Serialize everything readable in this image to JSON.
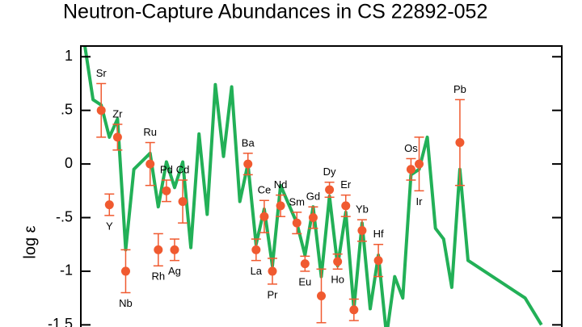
{
  "chart_data": {
    "type": "scatter",
    "title": "Neutron-Capture Abundances in CS 22892-052",
    "y_label": "log ε",
    "xlim": [
      35.5,
      94.5
    ],
    "ylim": [
      -1.52,
      1.1
    ],
    "yticks": [
      1,
      {
        "value": 0.5,
        "label": ".5"
      },
      0,
      {
        "value": -0.5,
        "label": "-.5"
      },
      -1,
      -1.5
    ],
    "points": {
      "color": "#f05a30",
      "x": [
        38,
        39,
        40,
        41,
        44,
        45,
        46,
        47,
        48,
        56,
        57,
        58,
        59,
        60,
        62,
        63,
        64,
        65,
        66,
        67,
        68,
        69,
        70,
        72,
        76,
        77,
        82
      ],
      "values": [
        0.5,
        -0.38,
        0.25,
        -1.0,
        0.0,
        -0.8,
        -0.25,
        -0.8,
        -0.35,
        0.0,
        -0.8,
        -0.49,
        -1.0,
        -0.39,
        -0.55,
        -0.93,
        -0.5,
        -1.23,
        -0.24,
        -0.91,
        -0.39,
        -1.36,
        -0.62,
        -0.9,
        -0.05,
        0.0,
        0.2
      ],
      "errors": [
        0.25,
        0.1,
        0.12,
        0.2,
        0.2,
        0.15,
        0.1,
        0.1,
        0.2,
        0.1,
        0.1,
        0.15,
        0.12,
        0.1,
        0.1,
        0.07,
        0.1,
        0.25,
        0.07,
        0.07,
        0.1,
        0.1,
        0.1,
        0.15,
        0.1,
        0.25,
        0.4
      ],
      "labels": [
        "Sr",
        "Y",
        "Zr",
        "Nb",
        "Ru",
        "Rh",
        "Pd",
        "Ag",
        "Cd",
        "Ba",
        "La",
        "Ce",
        "Pr",
        "Nd",
        "Sm",
        "Eu",
        "Gd",
        null,
        "Dy",
        "Ho",
        "Er",
        null,
        "Yb",
        "Hf",
        "Os",
        "Ir",
        "Pb"
      ]
    },
    "curve": {
      "color": "#22b057",
      "x": [
        36,
        37,
        38,
        39,
        40,
        41,
        42,
        44,
        45,
        46,
        47,
        48,
        49,
        50,
        51,
        52,
        53,
        54,
        55,
        56,
        57,
        58,
        59,
        60,
        62,
        63,
        64,
        65,
        66,
        67,
        68,
        69,
        70,
        71,
        72,
        73,
        74,
        75,
        76,
        77,
        78,
        79,
        80,
        81,
        82,
        83,
        90,
        92
      ],
      "values": [
        1.1,
        0.6,
        0.55,
        0.25,
        0.42,
        -0.8,
        -0.05,
        0.1,
        -0.4,
        0.02,
        -0.22,
        0.02,
        -0.78,
        0.28,
        -0.47,
        0.74,
        0.07,
        0.72,
        -0.35,
        0.0,
        -0.75,
        -0.42,
        -0.95,
        -0.2,
        -0.55,
        -0.85,
        -0.4,
        -1.05,
        -0.3,
        -0.95,
        -0.45,
        -1.35,
        -0.55,
        -1.35,
        -0.85,
        -1.6,
        -1.05,
        -1.25,
        -0.1,
        -0.05,
        0.25,
        -0.6,
        -0.7,
        -1.15,
        -0.05,
        -0.9,
        -1.25,
        -1.5
      ]
    }
  }
}
